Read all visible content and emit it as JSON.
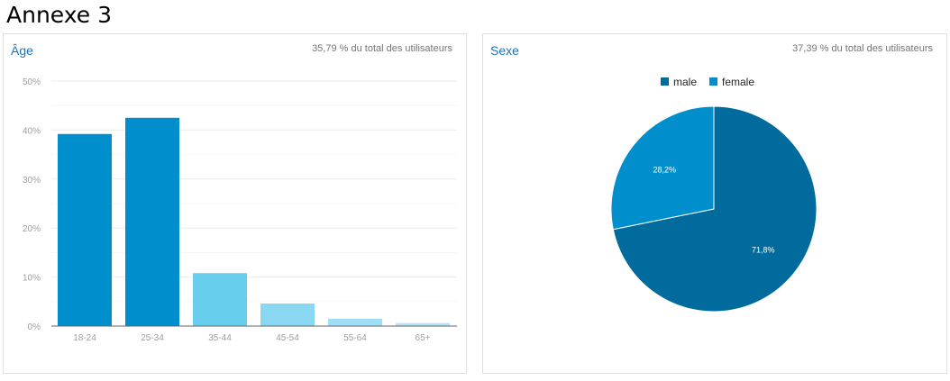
{
  "page_title": "Annexe 3",
  "chart_data": [
    {
      "type": "bar",
      "title": "Âge",
      "subtitle": "35,79 % du total des utilisateurs",
      "categories": [
        "18-24",
        "25-34",
        "35-44",
        "45-54",
        "55-64",
        "65+"
      ],
      "values": [
        39.2,
        42.5,
        10.8,
        4.6,
        1.5,
        0.6
      ],
      "colors": [
        "#008fcc",
        "#008fcc",
        "#69cdee",
        "#8ad7f1",
        "#9edff5",
        "#b2e6f7"
      ],
      "yticks": [
        "0%",
        "10%",
        "20%",
        "30%",
        "40%",
        "50%"
      ],
      "ylim": [
        0,
        50
      ],
      "grid": true,
      "xlabel": "",
      "ylabel": ""
    },
    {
      "type": "pie",
      "title": "Sexe",
      "subtitle": "37,39 % du total des utilisateurs",
      "labels": [
        "male",
        "female"
      ],
      "values": [
        71.8,
        28.2
      ],
      "value_labels": [
        "71,8%",
        "28,2%"
      ],
      "colors": [
        "#006b9c",
        "#008fcc"
      ],
      "legend": "top-center"
    }
  ]
}
